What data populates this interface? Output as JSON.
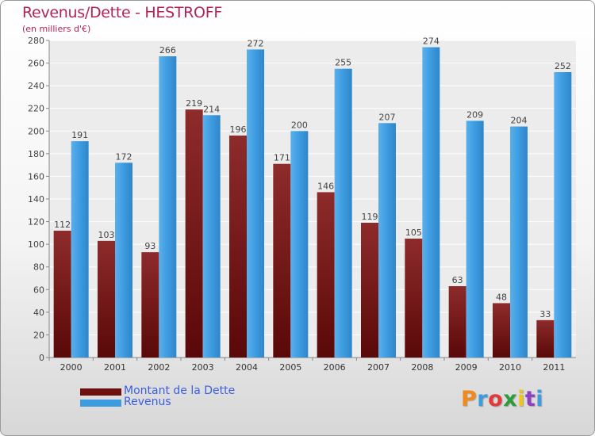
{
  "chart_data": {
    "type": "bar",
    "title": "Revenus/Dette - HESTROFF",
    "subtitle": "(en milliers d'€)",
    "categories": [
      "2000",
      "2001",
      "2002",
      "2003",
      "2004",
      "2005",
      "2006",
      "2007",
      "2008",
      "2009",
      "2010",
      "2011"
    ],
    "series": [
      {
        "name": "Montant de la Dette",
        "values": [
          112,
          103,
          93,
          219,
          196,
          171,
          146,
          119,
          105,
          63,
          48,
          33
        ]
      },
      {
        "name": "Revenus",
        "values": [
          191,
          172,
          266,
          214,
          272,
          200,
          255,
          207,
          274,
          209,
          204,
          252
        ]
      }
    ],
    "ylim": [
      0,
      280
    ],
    "yticks": [
      0,
      20,
      40,
      60,
      80,
      100,
      120,
      140,
      160,
      180,
      200,
      220,
      240,
      260,
      280
    ],
    "grid": true,
    "legend": "bottom-left",
    "colors": {
      "Montant de la Dette": "#7a1a1a",
      "Revenus": "#3d9be0"
    }
  },
  "brand": {
    "letters": [
      "P",
      "r",
      "o",
      "x",
      "i",
      "t",
      "i"
    ],
    "colors": [
      "#f08a1c",
      "#3d9be0",
      "#e23a3a",
      "#2e9c3a",
      "#f0c419",
      "#8f3fc0",
      "#3d9be0"
    ]
  }
}
